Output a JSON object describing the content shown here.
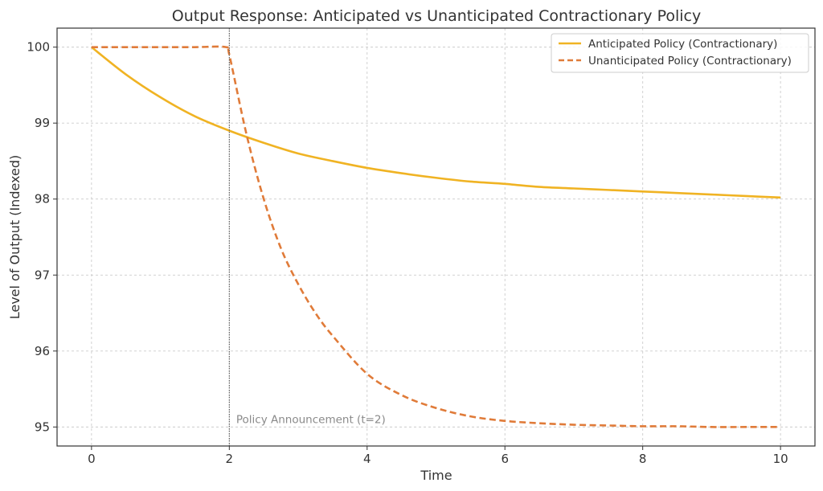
{
  "chart_data": {
    "type": "line",
    "title": "Output Response: Anticipated vs Unanticipated Contractionary Policy",
    "xlabel": "Time",
    "ylabel": "Level of Output (Indexed)",
    "xlim": [
      -0.5,
      10.5
    ],
    "ylim": [
      94.75,
      100.25
    ],
    "xticks": [
      0,
      2,
      4,
      6,
      8,
      10
    ],
    "yticks": [
      95,
      96,
      97,
      98,
      99,
      100
    ],
    "grid": true,
    "legend_position": "top-right",
    "series": [
      {
        "name": "Anticipated Policy (Contractionary)",
        "color": "#f0b323",
        "style": "solid",
        "x": [
          0,
          0.5,
          1,
          1.5,
          2,
          2.5,
          3,
          3.5,
          4,
          4.5,
          5,
          5.5,
          6,
          6.5,
          7,
          7.5,
          8,
          8.5,
          9,
          9.5,
          10
        ],
        "y": [
          100,
          99.64,
          99.34,
          99.09,
          98.9,
          98.74,
          98.6,
          98.5,
          98.41,
          98.34,
          98.28,
          98.23,
          98.2,
          98.16,
          98.14,
          98.12,
          98.1,
          98.08,
          98.06,
          98.04,
          98.02
        ]
      },
      {
        "name": "Unanticipated Policy (Contractionary)",
        "color": "#e07b39",
        "style": "dashed",
        "x": [
          0,
          0.5,
          1,
          1.5,
          1.95,
          2,
          2.25,
          2.5,
          2.75,
          3,
          3.25,
          3.5,
          4,
          4.5,
          5,
          5.5,
          6,
          6.5,
          7,
          7.5,
          8,
          8.5,
          9,
          9.5,
          10
        ],
        "y": [
          100,
          100,
          100,
          100,
          100,
          99.9,
          98.85,
          98.0,
          97.35,
          96.88,
          96.5,
          96.2,
          95.7,
          95.42,
          95.25,
          95.14,
          95.08,
          95.05,
          95.03,
          95.02,
          95.01,
          95.01,
          95.0,
          95.0,
          95.0
        ]
      }
    ],
    "vline": {
      "x": 2,
      "color": "#555555"
    },
    "annotation": {
      "text": "Policy Announcement (t=2)",
      "x": 2.1,
      "y": 95.05
    }
  }
}
